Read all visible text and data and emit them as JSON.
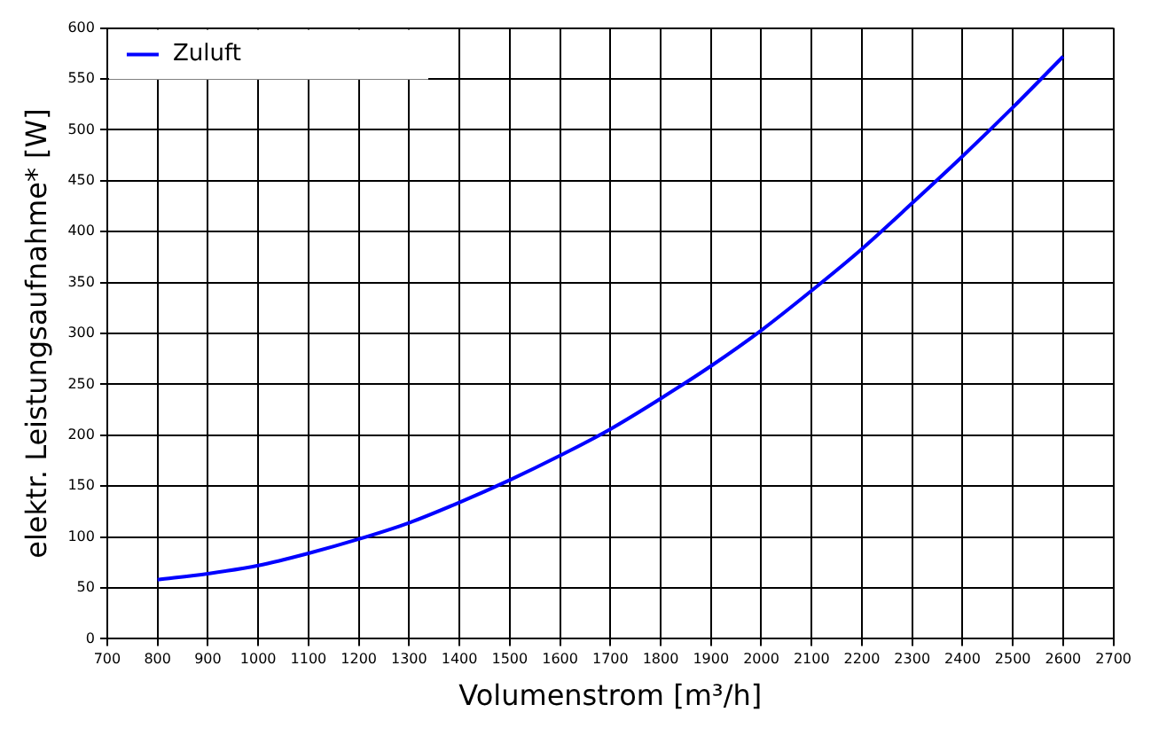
{
  "chart_data": {
    "type": "line",
    "xlabel": "Volumenstrom [m³/h]",
    "ylabel": "elektr. Leistungsaufnahme* [W]",
    "x": [
      800,
      900,
      1000,
      1100,
      1200,
      1300,
      1400,
      1500,
      1600,
      1700,
      1800,
      1900,
      2000,
      2100,
      2200,
      2300,
      2400,
      2500,
      2600
    ],
    "series": [
      {
        "name": "Zuluft",
        "color": "#0000ff",
        "values": [
          58,
          64,
          72,
          84,
          98,
          114,
          134,
          156,
          180,
          206,
          236,
          268,
          303,
          342,
          383,
          428,
          474,
          522,
          572
        ]
      }
    ],
    "xlim": [
      700,
      2700
    ],
    "xticks": [
      700,
      800,
      900,
      1000,
      1100,
      1200,
      1300,
      1400,
      1500,
      1600,
      1700,
      1800,
      1900,
      2000,
      2100,
      2200,
      2300,
      2400,
      2500,
      2600,
      2700
    ],
    "ylim": [
      0,
      600
    ],
    "yticks": [
      0,
      50,
      100,
      150,
      200,
      250,
      300,
      350,
      400,
      450,
      500,
      550,
      600
    ],
    "grid": true,
    "legend": "top left",
    "marker": "none",
    "line_style": "solid"
  }
}
